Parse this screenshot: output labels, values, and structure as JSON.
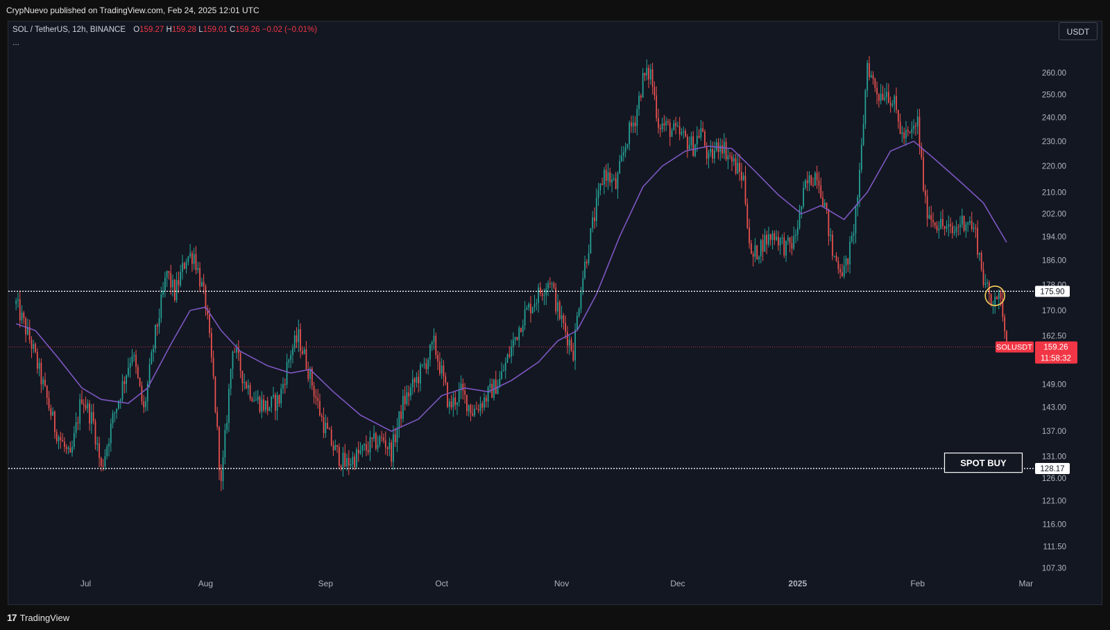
{
  "header": {
    "published": "CrypNuevo published on TradingView.com, Feb 24, 2025 12:01 UTC"
  },
  "legend": {
    "symbol": "SOL / TetherUS, 12h, BINANCE",
    "open_label": "O",
    "open": "159.27",
    "high_label": "H",
    "high": "159.28",
    "low_label": "L",
    "low": "159.01",
    "close_label": "C",
    "close": "159.26",
    "change": "−0.02 (−0.01%)",
    "more": "..."
  },
  "currency_button": "USDT",
  "footer": {
    "logo_mark": "17",
    "brand": "TradingView"
  },
  "colors": {
    "up": "#26a69a",
    "down": "#ef5350",
    "ma": "#7e57c2",
    "background": "#131722",
    "price_badge": "#f23645",
    "highlight_circle": "#f7d35c"
  },
  "chart_data": {
    "type": "candlestick",
    "symbol": "SOLUSDT",
    "timeframe": "12h",
    "exchange": "BINANCE",
    "y_axis": {
      "ticks": [
        "260.00",
        "250.00",
        "240.00",
        "230.00",
        "220.00",
        "210.00",
        "202.00",
        "194.00",
        "186.00",
        "178.00",
        "170.00",
        "162.50",
        "156.00",
        "149.00",
        "143.00",
        "137.00",
        "131.00",
        "126.00",
        "121.00",
        "116.00",
        "111.50",
        "107.30"
      ],
      "scale": "log"
    },
    "x_axis": {
      "ticks": [
        {
          "label": "Jul",
          "date": "2024-07-01"
        },
        {
          "label": "Aug",
          "date": "2024-08-01"
        },
        {
          "label": "Sep",
          "date": "2024-09-01"
        },
        {
          "label": "Oct",
          "date": "2024-10-01"
        },
        {
          "label": "Nov",
          "date": "2024-11-01"
        },
        {
          "label": "Dec",
          "date": "2024-12-01"
        },
        {
          "label": "2025",
          "date": "2025-01-01"
        },
        {
          "label": "Feb",
          "date": "2025-02-01"
        },
        {
          "label": "Mar",
          "date": "2025-03-01"
        }
      ]
    },
    "price_path": [
      [
        "2024-06-13",
        172
      ],
      [
        "2024-06-17",
        160
      ],
      [
        "2024-06-23",
        138
      ],
      [
        "2024-06-27",
        130
      ],
      [
        "2024-06-30",
        146
      ],
      [
        "2024-07-03",
        139
      ],
      [
        "2024-07-05",
        128
      ],
      [
        "2024-07-08",
        140
      ],
      [
        "2024-07-13",
        158
      ],
      [
        "2024-07-16",
        142
      ],
      [
        "2024-07-19",
        163
      ],
      [
        "2024-07-21",
        175
      ],
      [
        "2024-07-22",
        182
      ],
      [
        "2024-07-24",
        175
      ],
      [
        "2024-07-27",
        187
      ],
      [
        "2024-07-29",
        188
      ],
      [
        "2024-08-01",
        172
      ],
      [
        "2024-08-03",
        150
      ],
      [
        "2024-08-05",
        124
      ],
      [
        "2024-08-08",
        160
      ],
      [
        "2024-08-11",
        150
      ],
      [
        "2024-08-14",
        145
      ],
      [
        "2024-08-17",
        143
      ],
      [
        "2024-08-20",
        145
      ],
      [
        "2024-08-23",
        158
      ],
      [
        "2024-08-25",
        162
      ],
      [
        "2024-08-27",
        155
      ],
      [
        "2024-08-31",
        140
      ],
      [
        "2024-09-03",
        133
      ],
      [
        "2024-09-06",
        129
      ],
      [
        "2024-09-09",
        131
      ],
      [
        "2024-09-13",
        134
      ],
      [
        "2024-09-16",
        135
      ],
      [
        "2024-09-18",
        132
      ],
      [
        "2024-09-21",
        144
      ],
      [
        "2024-09-26",
        153
      ],
      [
        "2024-09-29",
        160
      ],
      [
        "2024-10-01",
        152
      ],
      [
        "2024-10-03",
        143
      ],
      [
        "2024-10-06",
        147
      ],
      [
        "2024-10-09",
        142
      ],
      [
        "2024-10-12",
        145
      ],
      [
        "2024-10-16",
        150
      ],
      [
        "2024-10-20",
        162
      ],
      [
        "2024-10-22",
        168
      ],
      [
        "2024-10-26",
        175
      ],
      [
        "2024-10-29",
        180
      ],
      [
        "2024-10-31",
        170
      ],
      [
        "2024-11-04",
        158
      ],
      [
        "2024-11-06",
        178
      ],
      [
        "2024-11-09",
        198
      ],
      [
        "2024-11-12",
        218
      ],
      [
        "2024-11-15",
        212
      ],
      [
        "2024-11-18",
        232
      ],
      [
        "2024-11-20",
        240
      ],
      [
        "2024-11-22",
        257
      ],
      [
        "2024-11-24",
        260
      ],
      [
        "2024-11-26",
        238
      ],
      [
        "2024-11-29",
        235
      ],
      [
        "2024-12-02",
        232
      ],
      [
        "2024-12-05",
        228
      ],
      [
        "2024-12-07",
        235
      ],
      [
        "2024-12-09",
        222
      ],
      [
        "2024-12-12",
        230
      ],
      [
        "2024-12-15",
        222
      ],
      [
        "2024-12-18",
        215
      ],
      [
        "2024-12-20",
        186
      ],
      [
        "2024-12-23",
        192
      ],
      [
        "2024-12-26",
        195
      ],
      [
        "2024-12-29",
        190
      ],
      [
        "2024-12-31",
        192
      ],
      [
        "2025-01-03",
        212
      ],
      [
        "2025-01-06",
        218
      ],
      [
        "2025-01-08",
        205
      ],
      [
        "2025-01-10",
        188
      ],
      [
        "2025-01-13",
        182
      ],
      [
        "2025-01-15",
        192
      ],
      [
        "2025-01-17",
        215
      ],
      [
        "2025-01-19",
        265
      ],
      [
        "2025-01-20",
        258
      ],
      [
        "2025-01-22",
        250
      ],
      [
        "2025-01-24",
        252
      ],
      [
        "2025-01-26",
        245
      ],
      [
        "2025-01-28",
        232
      ],
      [
        "2025-01-30",
        232
      ],
      [
        "2025-02-01",
        238
      ],
      [
        "2025-02-03",
        205
      ],
      [
        "2025-02-05",
        200
      ],
      [
        "2025-02-07",
        198
      ],
      [
        "2025-02-10",
        195
      ],
      [
        "2025-02-12",
        199
      ],
      [
        "2025-02-14",
        200
      ],
      [
        "2025-02-16",
        195
      ],
      [
        "2025-02-18",
        180
      ],
      [
        "2025-02-20",
        172
      ],
      [
        "2025-02-21",
        176
      ],
      [
        "2025-02-23",
        170
      ],
      [
        "2025-02-24",
        159.26
      ]
    ],
    "moving_average": [
      [
        "2024-06-13",
        166
      ],
      [
        "2024-06-18",
        164
      ],
      [
        "2024-06-24",
        156
      ],
      [
        "2024-06-30",
        148
      ],
      [
        "2024-07-05",
        145
      ],
      [
        "2024-07-12",
        144
      ],
      [
        "2024-07-17",
        148
      ],
      [
        "2024-07-23",
        160
      ],
      [
        "2024-07-28",
        170
      ],
      [
        "2024-08-01",
        171
      ],
      [
        "2024-08-05",
        164
      ],
      [
        "2024-08-10",
        158
      ],
      [
        "2024-08-17",
        154
      ],
      [
        "2024-08-23",
        152
      ],
      [
        "2024-08-28",
        153
      ],
      [
        "2024-09-03",
        147
      ],
      [
        "2024-09-10",
        141
      ],
      [
        "2024-09-18",
        137
      ],
      [
        "2024-09-25",
        140
      ],
      [
        "2024-10-01",
        146
      ],
      [
        "2024-10-07",
        148
      ],
      [
        "2024-10-13",
        147
      ],
      [
        "2024-10-19",
        150
      ],
      [
        "2024-10-26",
        155
      ],
      [
        "2024-10-31",
        161
      ],
      [
        "2024-11-05",
        164
      ],
      [
        "2024-11-10",
        175
      ],
      [
        "2024-11-16",
        194
      ],
      [
        "2024-11-22",
        212
      ],
      [
        "2024-11-27",
        220
      ],
      [
        "2024-12-03",
        226
      ],
      [
        "2024-12-09",
        228
      ],
      [
        "2024-12-15",
        227
      ],
      [
        "2024-12-21",
        218
      ],
      [
        "2024-12-27",
        209
      ],
      [
        "2025-01-02",
        202
      ],
      [
        "2025-01-07",
        205
      ],
      [
        "2025-01-13",
        200
      ],
      [
        "2025-01-19",
        210
      ],
      [
        "2025-01-25",
        226
      ],
      [
        "2025-01-31",
        230
      ],
      [
        "2025-02-06",
        222
      ],
      [
        "2025-02-12",
        214
      ],
      [
        "2025-02-18",
        206
      ],
      [
        "2025-02-24",
        192
      ]
    ],
    "horizontal_levels": [
      {
        "price": 175.9,
        "label": "175.90",
        "style": "dotted"
      },
      {
        "price": 128.17,
        "label": "128.17",
        "style": "dotted"
      }
    ],
    "last_price": {
      "price": 159.26,
      "label": "SOLUSDT",
      "value": "159.26",
      "countdown": "11:58:32"
    },
    "annotations": [
      {
        "text": "SPOT BUY",
        "date": "2025-02-18",
        "price": 129.5
      },
      {
        "type": "circle",
        "date": "2025-02-21",
        "price": 174.5
      }
    ]
  }
}
